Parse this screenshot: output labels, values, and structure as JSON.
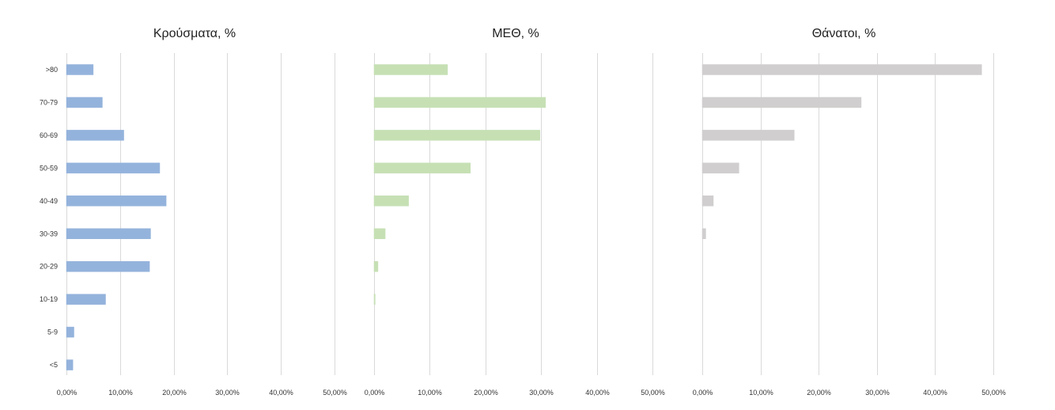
{
  "chart_data": [
    {
      "type": "bar",
      "orientation": "horizontal",
      "title": "Κρούσματα, %",
      "categories": [
        ">80",
        "70-79",
        "60-69",
        "50-59",
        "40-49",
        "30-39",
        "20-29",
        "10-19",
        "5-9",
        "<5"
      ],
      "values": [
        5.0,
        6.7,
        10.7,
        17.4,
        18.6,
        15.7,
        15.5,
        7.3,
        1.4,
        1.2
      ],
      "xlim": [
        0,
        50
      ],
      "x_ticks": [
        "0,00%",
        "10,00%",
        "20,00%",
        "30,00%",
        "40,00%",
        "50,00%"
      ],
      "grid": true,
      "color": "#94b3dc"
    },
    {
      "type": "bar",
      "orientation": "horizontal",
      "title": "ΜΕΘ, %",
      "categories": [
        ">80",
        "70-79",
        "60-69",
        "50-59",
        "40-49",
        "30-39",
        "20-29",
        "10-19",
        "5-9",
        "<5"
      ],
      "values": [
        13.2,
        30.8,
        29.8,
        17.3,
        6.2,
        2.0,
        0.7,
        0.2,
        0,
        0
      ],
      "xlim": [
        0,
        50
      ],
      "x_ticks": [
        "0,00%",
        "10,00%",
        "20,00%",
        "30,00%",
        "40,00%",
        "50,00%"
      ],
      "grid": true,
      "color": "#c6e0b4"
    },
    {
      "type": "bar",
      "orientation": "horizontal",
      "title": "Θάνατοι, %",
      "categories": [
        ">80",
        "70-79",
        "60-69",
        "50-59",
        "40-49",
        "30-39",
        "20-29",
        "10-19",
        "5-9",
        "<5"
      ],
      "values": [
        48.0,
        27.3,
        15.8,
        6.3,
        1.9,
        0.6,
        0,
        0,
        0,
        0
      ],
      "xlim": [
        0,
        50
      ],
      "x_ticks": [
        "0,00%",
        "10,00%",
        "20,00%",
        "30,00%",
        "40,00%",
        "50,00%"
      ],
      "grid": true,
      "color": "#d0cece"
    }
  ]
}
